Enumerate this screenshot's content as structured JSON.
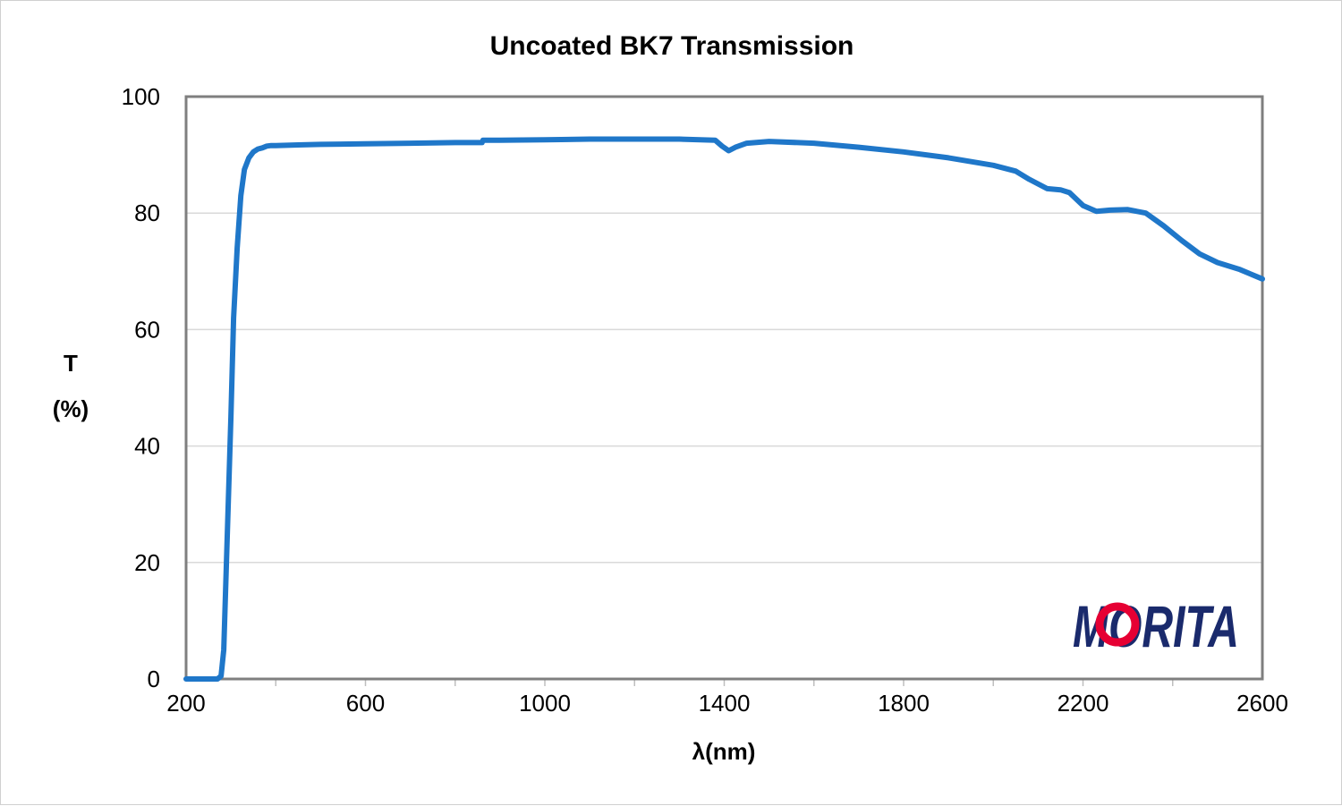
{
  "chart_data": {
    "type": "line",
    "title": "Uncoated BK7 Transmission",
    "xlabel": "λ(nm)",
    "ylabel_line1": "T",
    "ylabel_line2": "(%)",
    "xlim": [
      200,
      2600
    ],
    "ylim": [
      0,
      100
    ],
    "x_ticks": [
      200,
      600,
      1000,
      1400,
      1800,
      2200,
      2600
    ],
    "x_tick_labels": [
      "200",
      "600",
      "1000",
      "1400",
      "1800",
      "2200",
      "2600"
    ],
    "y_ticks": [
      0,
      20,
      40,
      60,
      80,
      100
    ],
    "y_tick_labels": [
      "0",
      "20",
      "40",
      "60",
      "80",
      "100"
    ],
    "grid": true,
    "legend": "none",
    "series": [
      {
        "color": "#1f77c9",
        "x": [
          200,
          270,
          278,
          284,
          290,
          300,
          306,
          314,
          322,
          330,
          340,
          350,
          360,
          370,
          380,
          390,
          400,
          450,
          500,
          600,
          700,
          800,
          860,
          862,
          900,
          1000,
          1100,
          1200,
          1300,
          1380,
          1395,
          1410,
          1425,
          1450,
          1500,
          1600,
          1700,
          1800,
          1900,
          2000,
          2050,
          2080,
          2120,
          2150,
          2170,
          2200,
          2230,
          2260,
          2300,
          2340,
          2380,
          2420,
          2460,
          2500,
          2550,
          2600
        ],
        "y": [
          0,
          0,
          0.5,
          5,
          20,
          45,
          62,
          74,
          83,
          87.5,
          89.5,
          90.5,
          91,
          91.2,
          91.5,
          91.6,
          91.6,
          91.7,
          91.8,
          91.9,
          92.0,
          92.1,
          92.1,
          92.5,
          92.5,
          92.6,
          92.7,
          92.7,
          92.7,
          92.5,
          91.5,
          90.7,
          91.3,
          92.0,
          92.3,
          92.0,
          91.3,
          90.5,
          89.5,
          88.2,
          87.2,
          85.8,
          84.2,
          84.0,
          83.5,
          81.3,
          80.3,
          80.5,
          80.6,
          80.0,
          77.8,
          75.3,
          73.0,
          71.5,
          70.3,
          68.7
        ]
      }
    ]
  },
  "logo": {
    "text": "MORITA",
    "primary_color": "#1a2a6c",
    "accent_color": "#e60033"
  }
}
